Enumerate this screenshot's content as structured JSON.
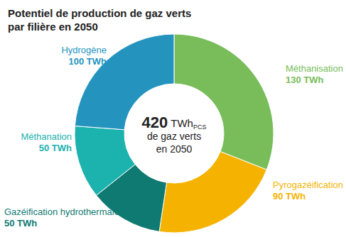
{
  "chart_data": {
    "type": "pie",
    "title": "Potentiel de production de gaz verts\npar filière en 2050",
    "categories": [
      "Méthanisation",
      "Pyrogazéification",
      "Gazéification hydrothermale",
      "Méthanation",
      "Hydrogène"
    ],
    "values": [
      130,
      90,
      50,
      50,
      100
    ],
    "value_labels": [
      "130 TWh",
      "90 TWh",
      "50 TWh",
      "50 TWh",
      "100 TWh"
    ],
    "colors": [
      "#78bd5a",
      "#f5b300",
      "#0f7a72",
      "#1cb2ae",
      "#2494bf"
    ],
    "data_labels": true,
    "center_text": {
      "value": 420,
      "unit": "TWh",
      "subscript": "PCS",
      "lines": [
        "de gaz verts",
        "en 2050"
      ]
    }
  }
}
